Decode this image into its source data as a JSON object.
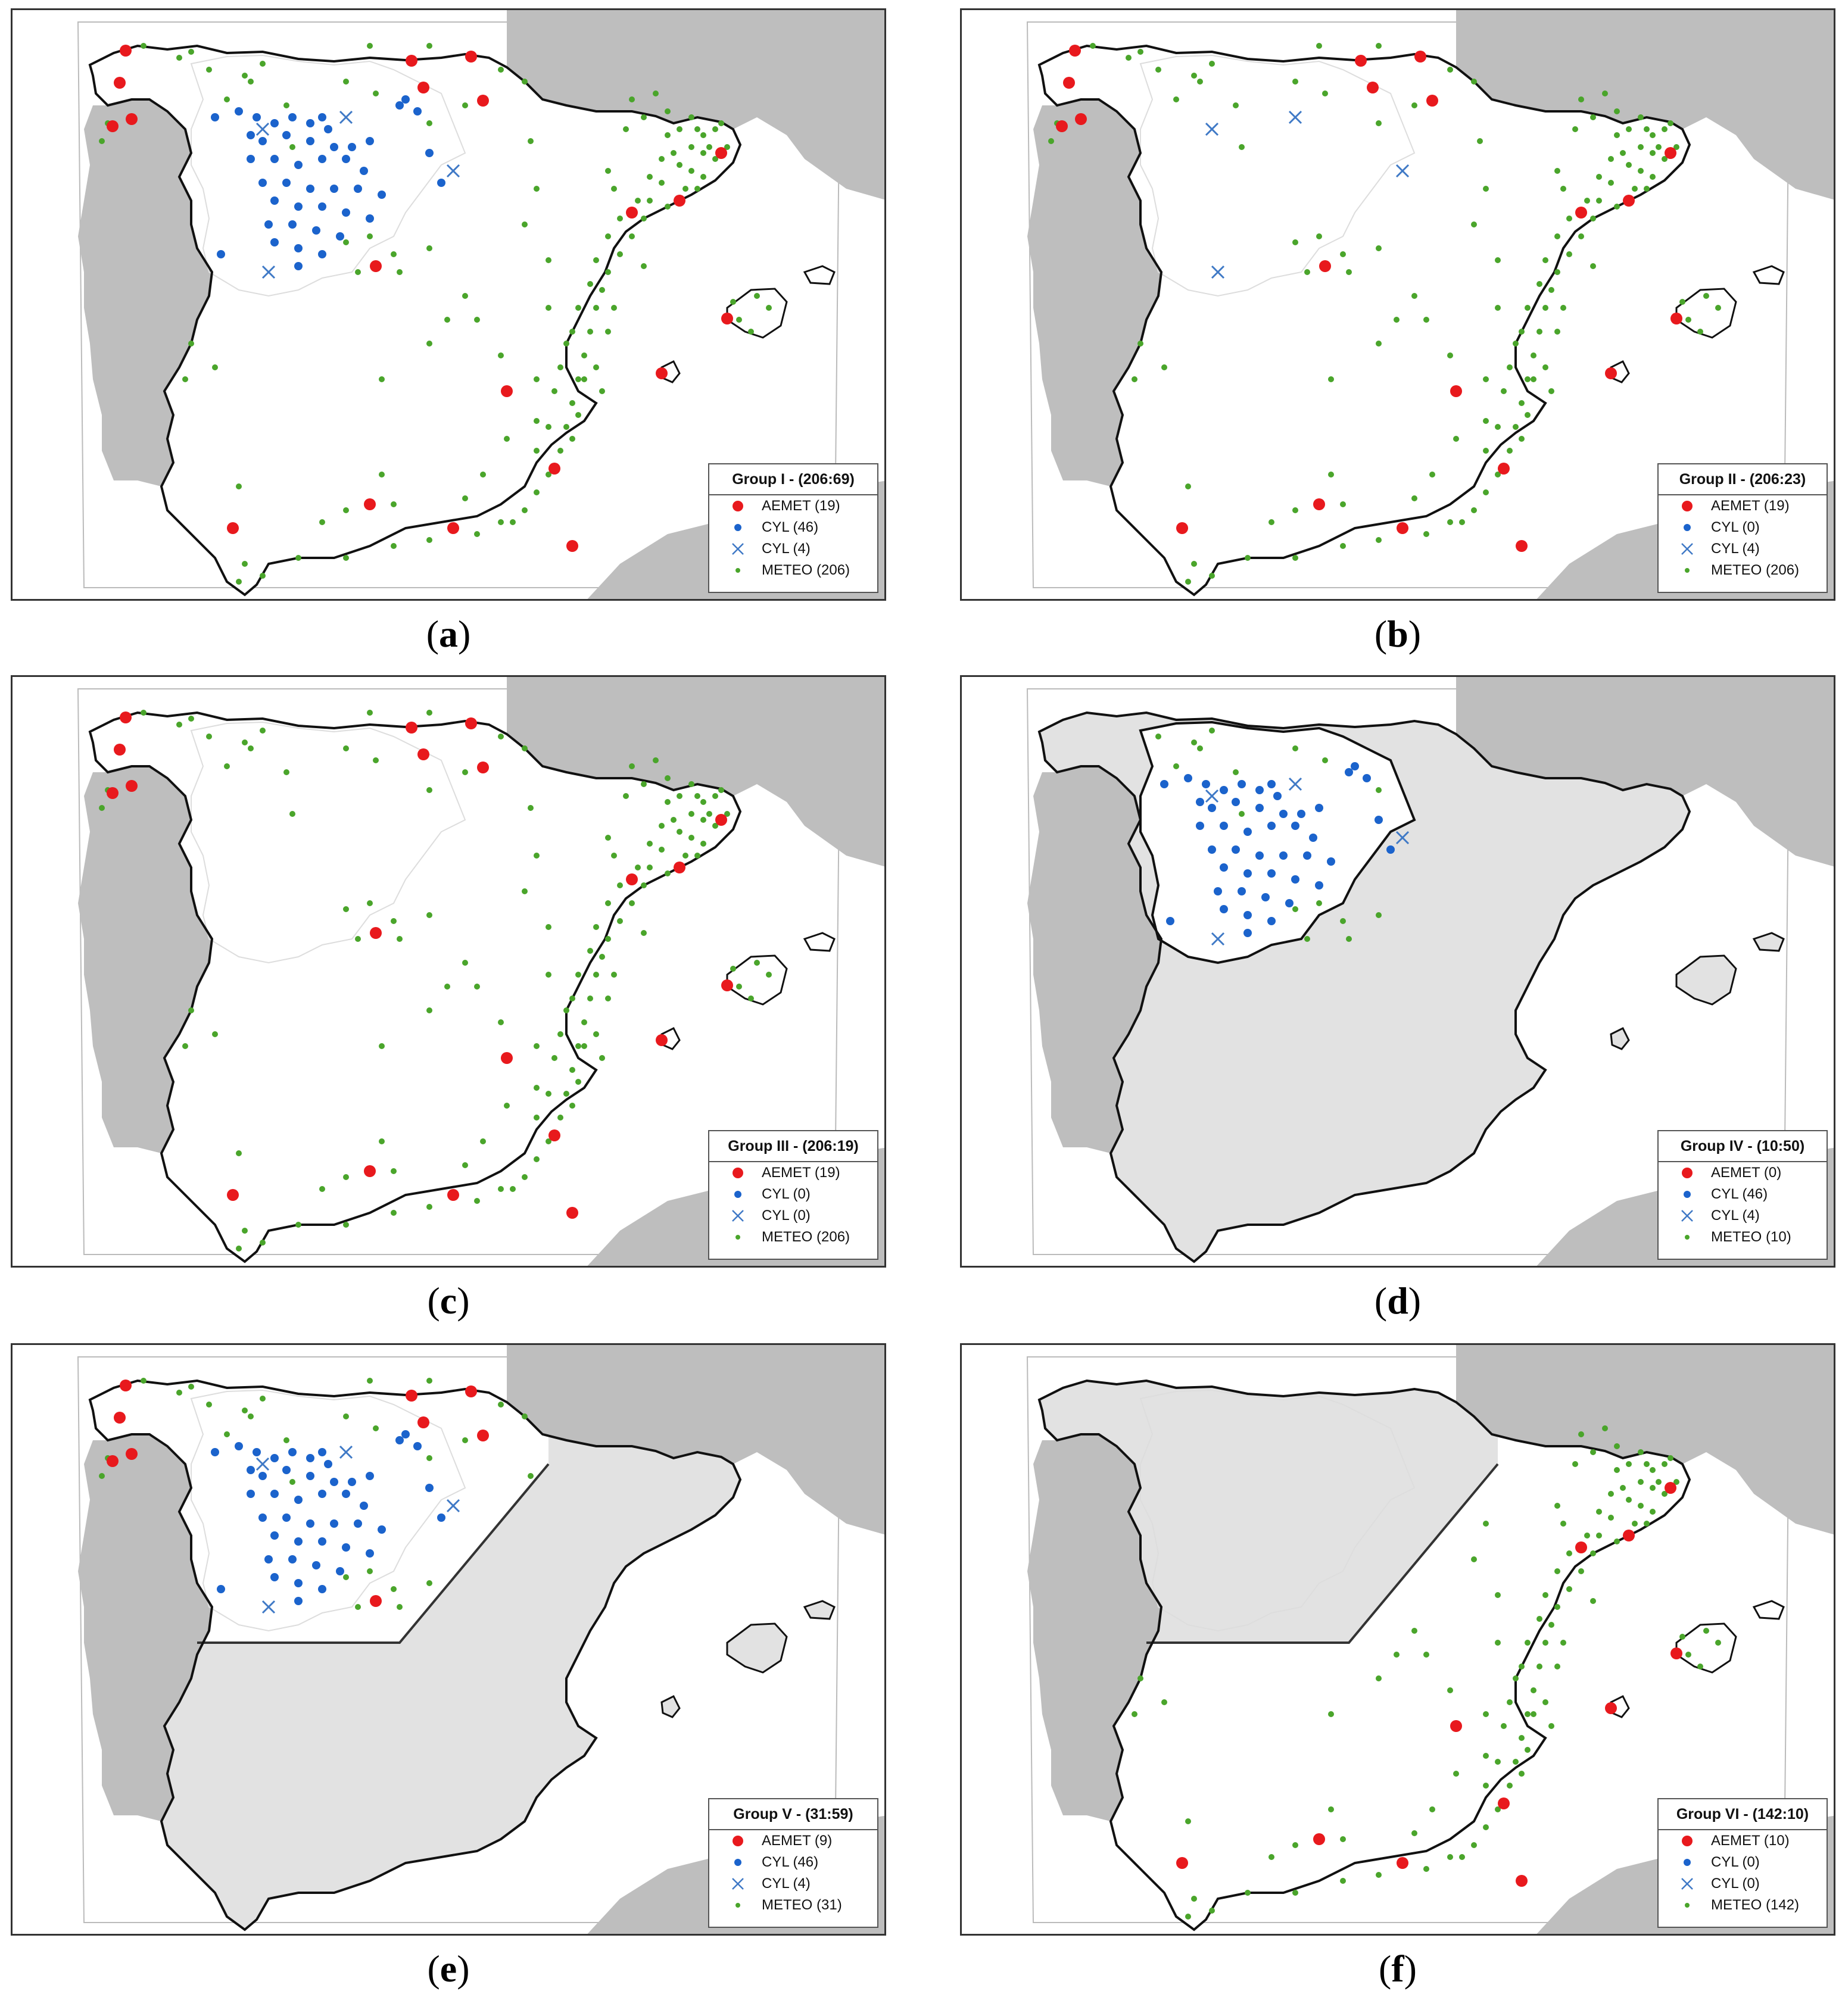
{
  "colors": {
    "aemet": "#e8191d",
    "cyl": "#1b63cc",
    "cyl_cross": "#3f79c6",
    "meteo": "#4aa52b",
    "land_other": "#bebebe",
    "land_shaded": "#e2e2e2",
    "land_white": "#ffffff"
  },
  "legend_items": [
    {
      "key": "aemet",
      "label": "AEMET",
      "symbol": "red-dot-icon"
    },
    {
      "key": "cyl",
      "label": "CYL",
      "symbol": "blue-dot-icon"
    },
    {
      "key": "cylx",
      "label": "CYL",
      "symbol": "blue-cross-icon"
    },
    {
      "key": "meteo",
      "label": "METEO",
      "symbol": "green-dot-icon"
    }
  ],
  "panels": [
    {
      "id": "a",
      "caption": "a",
      "legend_title": "Group I - (206:69)",
      "counts": [
        "(19)",
        "(46)",
        "(4)",
        "(206)"
      ],
      "show_aemet": "all",
      "show_cyl": true,
      "show_cylx": true,
      "show_meteo": "all",
      "shade": "none"
    },
    {
      "id": "b",
      "caption": "b",
      "legend_title": "Group II - (206:23)",
      "counts": [
        "(19)",
        "(0)",
        "(4)",
        "(206)"
      ],
      "show_aemet": "all",
      "show_cyl": false,
      "show_cylx": true,
      "show_meteo": "all",
      "shade": "none"
    },
    {
      "id": "c",
      "caption": "c",
      "legend_title": "Group III - (206:19)",
      "counts": [
        "(19)",
        "(0)",
        "(0)",
        "(206)"
      ],
      "show_aemet": "all",
      "show_cyl": false,
      "show_cylx": false,
      "show_meteo": "all",
      "shade": "none"
    },
    {
      "id": "d",
      "caption": "d",
      "legend_title": "Group IV - (10:50)",
      "counts": [
        "(0)",
        "(46)",
        "(4)",
        "(10)"
      ],
      "show_aemet": "none",
      "show_cyl": true,
      "show_cylx": true,
      "show_meteo": "cyl",
      "shade": "all-but-cyl"
    },
    {
      "id": "e",
      "caption": "e",
      "legend_title": "Group V - (31:59)",
      "counts": [
        "(9)",
        "(46)",
        "(4)",
        "(31)"
      ],
      "show_aemet": "nw",
      "show_cyl": true,
      "show_cylx": true,
      "show_meteo": "nw",
      "shade": "south-east"
    },
    {
      "id": "f",
      "caption": "f",
      "legend_title": "Group VI - (142:10)",
      "counts": [
        "(10)",
        "(0)",
        "(0)",
        "(142)"
      ],
      "show_aemet": "se",
      "show_cyl": false,
      "show_cylx": false,
      "show_meteo": "se",
      "shade": "north-west"
    }
  ]
}
